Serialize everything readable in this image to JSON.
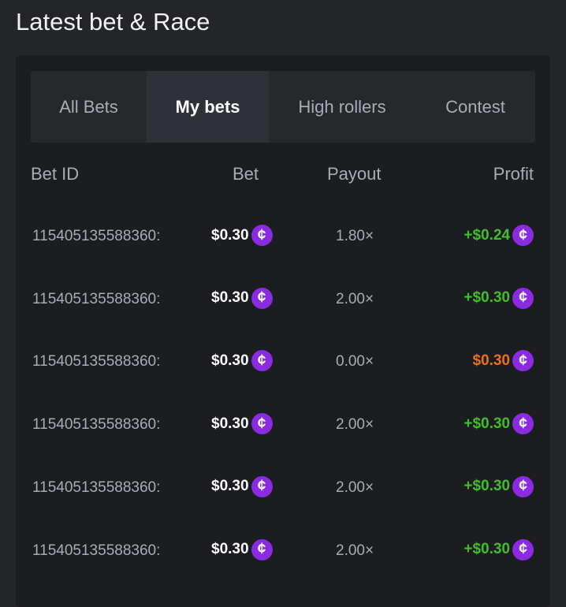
{
  "title": "Latest bet & Race",
  "tabs": [
    {
      "label": "All Bets",
      "active": false
    },
    {
      "label": "My bets",
      "active": true
    },
    {
      "label": "High rollers",
      "active": false
    },
    {
      "label": "Contest",
      "active": false
    }
  ],
  "columns": {
    "bet_id": "Bet ID",
    "bet": "Bet",
    "payout": "Payout",
    "profit": "Profit"
  },
  "colors": {
    "win": "#3fbf2a",
    "loss": "#e8711c",
    "coin": "#8a2be2"
  },
  "coin_icon": "cent-coin-icon",
  "rows": [
    {
      "id": "115405135588360:",
      "bet": "$0.30",
      "payout": "1.80×",
      "profit": "+$0.24",
      "result": "win"
    },
    {
      "id": "115405135588360:",
      "bet": "$0.30",
      "payout": "2.00×",
      "profit": "+$0.30",
      "result": "win"
    },
    {
      "id": "115405135588360:",
      "bet": "$0.30",
      "payout": "0.00×",
      "profit": "$0.30",
      "result": "loss"
    },
    {
      "id": "115405135588360:",
      "bet": "$0.30",
      "payout": "2.00×",
      "profit": "+$0.30",
      "result": "win"
    },
    {
      "id": "115405135588360:",
      "bet": "$0.30",
      "payout": "2.00×",
      "profit": "+$0.30",
      "result": "win"
    },
    {
      "id": "115405135588360:",
      "bet": "$0.30",
      "payout": "2.00×",
      "profit": "+$0.30",
      "result": "win"
    }
  ]
}
